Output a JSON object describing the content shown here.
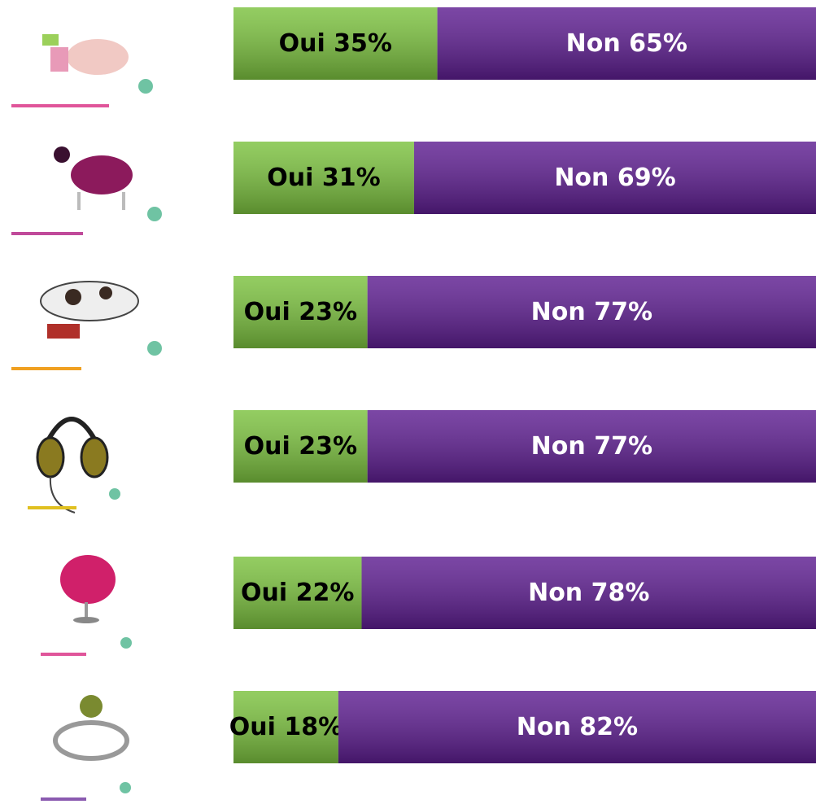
{
  "chart_data": {
    "type": "bar",
    "orientation": "horizontal",
    "stacked": true,
    "xlim": [
      0,
      100
    ],
    "series": [
      {
        "color": "#7cc23f",
        "text_color": "#000000",
        "values": [
          35,
          31,
          23,
          23,
          22,
          18
        ],
        "value_labels": [
          "Oui 35%",
          "Oui 31%",
          "Oui 23%",
          "Oui 23%",
          "Oui 22%",
          "Oui 18%"
        ]
      },
      {
        "color": "#5e1e91",
        "text_color": "#ffffff",
        "values": [
          65,
          69,
          77,
          77,
          78,
          82
        ],
        "value_labels": [
          "Non 65%",
          "Non 69%",
          "Non 77%",
          "Non 77%",
          "Non 78%",
          "Non 82%"
        ]
      }
    ]
  }
}
